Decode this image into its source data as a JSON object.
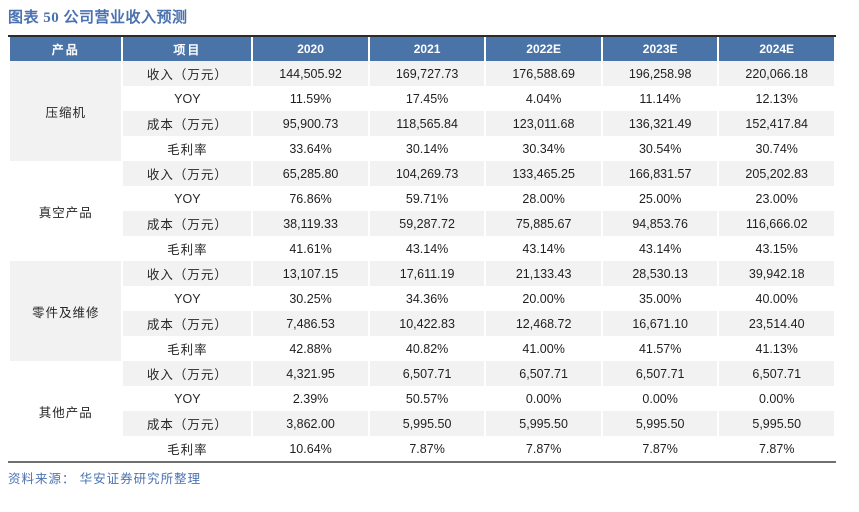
{
  "title": "图表 50 公司营业收入预测",
  "source": "资料来源： 华安证券研究所整理",
  "colors": {
    "header_bg": "#4a74a8",
    "shade_row_bg": "#f2f2f2",
    "title_blue": "#4a72b0",
    "top_border": "#2b2b2b",
    "bottom_border": "#707070"
  },
  "table": {
    "headers": [
      "产品",
      "项目",
      "2020",
      "2021",
      "2022E",
      "2023E",
      "2024E"
    ],
    "groups": [
      {
        "product": "压缩机",
        "rows": [
          {
            "item": "收入（万元）",
            "values": [
              "144,505.92",
              "169,727.73",
              "176,588.69",
              "196,258.98",
              "220,066.18"
            ]
          },
          {
            "item": "YOY",
            "values": [
              "11.59%",
              "17.45%",
              "4.04%",
              "11.14%",
              "12.13%"
            ]
          },
          {
            "item": "成本（万元）",
            "values": [
              "95,900.73",
              "118,565.84",
              "123,011.68",
              "136,321.49",
              "152,417.84"
            ]
          },
          {
            "item": "毛利率",
            "values": [
              "33.64%",
              "30.14%",
              "30.34%",
              "30.54%",
              "30.74%"
            ]
          }
        ]
      },
      {
        "product": "真空产品",
        "rows": [
          {
            "item": "收入（万元）",
            "values": [
              "65,285.80",
              "104,269.73",
              "133,465.25",
              "166,831.57",
              "205,202.83"
            ]
          },
          {
            "item": "YOY",
            "values": [
              "76.86%",
              "59.71%",
              "28.00%",
              "25.00%",
              "23.00%"
            ]
          },
          {
            "item": "成本（万元）",
            "values": [
              "38,119.33",
              "59,287.72",
              "75,885.67",
              "94,853.76",
              "116,666.02"
            ]
          },
          {
            "item": "毛利率",
            "values": [
              "41.61%",
              "43.14%",
              "43.14%",
              "43.14%",
              "43.15%"
            ]
          }
        ]
      },
      {
        "product": "零件及维修",
        "rows": [
          {
            "item": "收入（万元）",
            "values": [
              "13,107.15",
              "17,611.19",
              "21,133.43",
              "28,530.13",
              "39,942.18"
            ]
          },
          {
            "item": "YOY",
            "values": [
              "30.25%",
              "34.36%",
              "20.00%",
              "35.00%",
              "40.00%"
            ]
          },
          {
            "item": "成本（万元）",
            "values": [
              "7,486.53",
              "10,422.83",
              "12,468.72",
              "16,671.10",
              "23,514.40"
            ]
          },
          {
            "item": "毛利率",
            "values": [
              "42.88%",
              "40.82%",
              "41.00%",
              "41.57%",
              "41.13%"
            ]
          }
        ]
      },
      {
        "product": "其他产品",
        "rows": [
          {
            "item": "收入（万元）",
            "values": [
              "4,321.95",
              "6,507.71",
              "6,507.71",
              "6,507.71",
              "6,507.71"
            ]
          },
          {
            "item": "YOY",
            "values": [
              "2.39%",
              "50.57%",
              "0.00%",
              "0.00%",
              "0.00%"
            ]
          },
          {
            "item": "成本（万元）",
            "values": [
              "3,862.00",
              "5,995.50",
              "5,995.50",
              "5,995.50",
              "5,995.50"
            ]
          },
          {
            "item": "毛利率",
            "values": [
              "10.64%",
              "7.87%",
              "7.87%",
              "7.87%",
              "7.87%"
            ]
          }
        ]
      }
    ]
  }
}
